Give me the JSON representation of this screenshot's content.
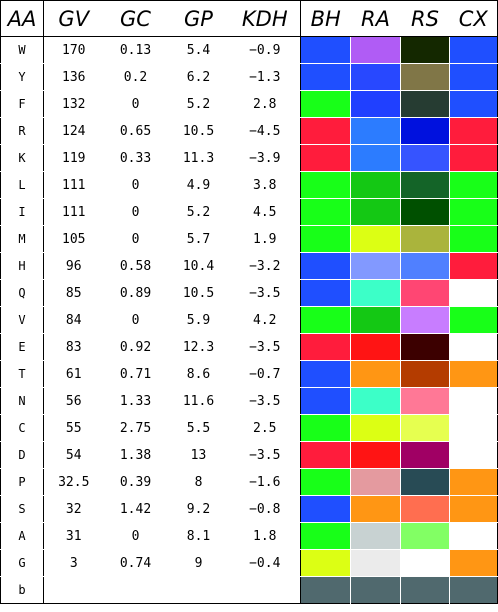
{
  "headers": [
    "AA",
    "GV",
    "GC",
    "GP",
    "KDH",
    "BH",
    "RA",
    "RS",
    "CX"
  ],
  "rows": [
    {
      "aa": "W",
      "gv": "170",
      "gc": "0.13",
      "gp": "5.4",
      "kdh": "-0.9",
      "bh": "#1f4fff",
      "ra": "#b05cf5",
      "rs": "#142800",
      "cx": "#1f4fff"
    },
    {
      "aa": "Y",
      "gv": "136",
      "gc": "0.2",
      "gp": "6.2",
      "kdh": "-1.3",
      "bh": "#1f4fff",
      "ra": "#2848ff",
      "rs": "#807647",
      "cx": "#1f4fff"
    },
    {
      "aa": "F",
      "gv": "132",
      "gc": "0",
      "gp": "5.2",
      "kdh": "2.8",
      "bh": "#18ff18",
      "ra": "#2040ff",
      "rs": "#263c32",
      "cx": "#1f4fff"
    },
    {
      "aa": "R",
      "gv": "124",
      "gc": "0.65",
      "gp": "10.5",
      "kdh": "-4.5",
      "bh": "#ff1c3c",
      "ra": "#2c7cff",
      "rs": "#0011de",
      "cx": "#ff1c3c"
    },
    {
      "aa": "K",
      "gv": "119",
      "gc": "0.33",
      "gp": "11.3",
      "kdh": "-3.9",
      "bh": "#ff1c3c",
      "ra": "#2c7cff",
      "rs": "#3654ff",
      "cx": "#ff1c3c"
    },
    {
      "aa": "L",
      "gv": "111",
      "gc": "0",
      "gp": "4.9",
      "kdh": "3.8",
      "bh": "#18ff18",
      "ra": "#14c814",
      "rs": "#146428",
      "cx": "#18ff18"
    },
    {
      "aa": "I",
      "gv": "111",
      "gc": "0",
      "gp": "5.2",
      "kdh": "4.5",
      "bh": "#18ff18",
      "ra": "#14c814",
      "rs": "#005000",
      "cx": "#18ff18"
    },
    {
      "aa": "M",
      "gv": "105",
      "gc": "0",
      "gp": "5.7",
      "kdh": "1.9",
      "bh": "#18ff18",
      "ra": "#dcff14",
      "rs": "#aab43c",
      "cx": "#18ff18"
    },
    {
      "aa": "H",
      "gv": "96",
      "gc": "0.58",
      "gp": "10.4",
      "kdh": "-3.2",
      "bh": "#1f4fff",
      "ra": "#8299ff",
      "rs": "#5080ff",
      "cx": "#ff1c3c"
    },
    {
      "aa": "Q",
      "gv": "85",
      "gc": "0.89",
      "gp": "10.5",
      "kdh": "-3.5",
      "bh": "#1f4fff",
      "ra": "#3cffc8",
      "rs": "#ff4673",
      "cx": "#ffffff"
    },
    {
      "aa": "V",
      "gv": "84",
      "gc": "0",
      "gp": "5.9",
      "kdh": "4.2",
      "bh": "#18ff18",
      "ra": "#14c814",
      "rs": "#c87dff",
      "cx": "#18ff18"
    },
    {
      "aa": "E",
      "gv": "83",
      "gc": "0.92",
      "gp": "12.3",
      "kdh": "-3.5",
      "bh": "#ff1c3c",
      "ra": "#ff1414",
      "rs": "#3c0000",
      "cx": "#ffffff"
    },
    {
      "aa": "T",
      "gv": "61",
      "gc": "0.71",
      "gp": "8.6",
      "kdh": "-0.7",
      "bh": "#1f4fff",
      "ra": "#ff9614",
      "rs": "#b43c00",
      "cx": "#ff9614"
    },
    {
      "aa": "N",
      "gv": "56",
      "gc": "1.33",
      "gp": "11.6",
      "kdh": "-3.5",
      "bh": "#1f4fff",
      "ra": "#3cffc8",
      "rs": "#ff7896",
      "cx": "#ffffff"
    },
    {
      "aa": "C",
      "gv": "55",
      "gc": "2.75",
      "gp": "5.5",
      "kdh": "2.5",
      "bh": "#18ff18",
      "ra": "#dcff14",
      "rs": "#e6ff50",
      "cx": "#ffffff"
    },
    {
      "aa": "D",
      "gv": "54",
      "gc": "1.38",
      "gp": "13",
      "kdh": "-3.5",
      "bh": "#ff1c3c",
      "ra": "#ff1414",
      "rs": "#a00064",
      "cx": "#ffffff"
    },
    {
      "aa": "P",
      "gv": "32.5",
      "gc": "0.39",
      "gp": "8",
      "kdh": "-1.6",
      "bh": "#18ff18",
      "ra": "#e49a9f",
      "rs": "#284b55",
      "cx": "#ff9614"
    },
    {
      "aa": "S",
      "gv": "32",
      "gc": "1.42",
      "gp": "9.2",
      "kdh": "-0.8",
      "bh": "#1f4fff",
      "ra": "#ff9614",
      "rs": "#ff6e50",
      "cx": "#ff9614"
    },
    {
      "aa": "A",
      "gv": "31",
      "gc": "0",
      "gp": "8.1",
      "kdh": "1.8",
      "bh": "#18ff18",
      "ra": "#c8d2d2",
      "rs": "#82ff64",
      "cx": "#ffffff"
    },
    {
      "aa": "G",
      "gv": "3",
      "gc": "0.74",
      "gp": "9",
      "kdh": "-0.4",
      "bh": "#dcff14",
      "ra": "#ebebeb",
      "rs": "#ffffff",
      "cx": "#ff9614"
    },
    {
      "aa": "b",
      "gv": "",
      "gc": "",
      "gp": "",
      "kdh": "",
      "bh": "#50696e",
      "ra": "#50696e",
      "rs": "#50696e",
      "cx": "#50696e"
    }
  ]
}
